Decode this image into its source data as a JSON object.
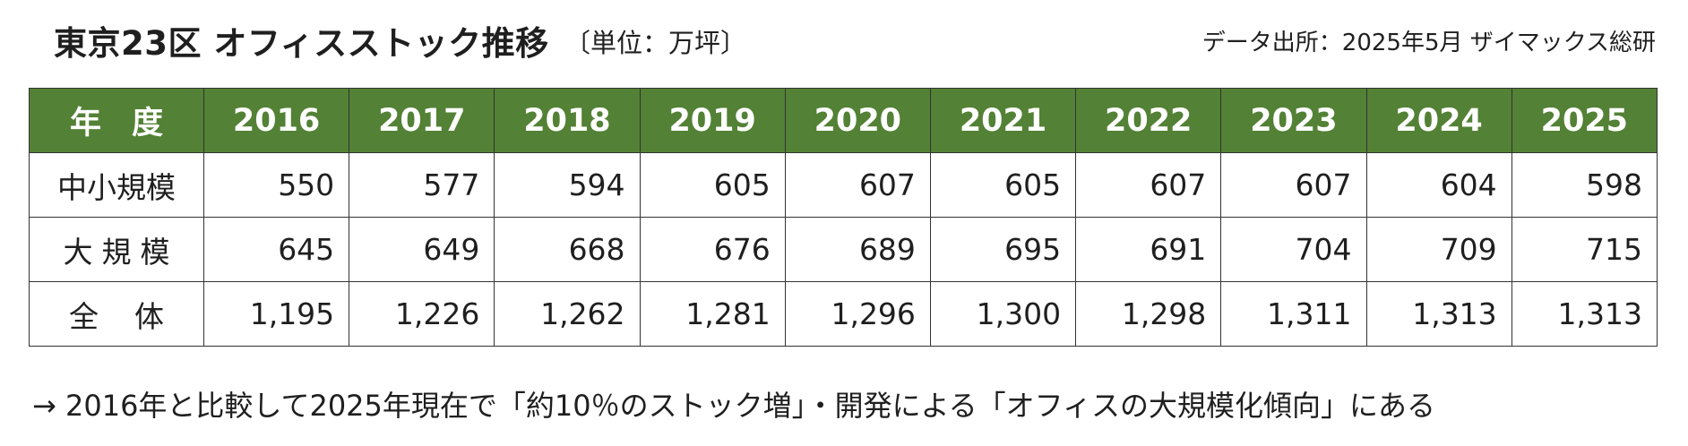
{
  "header": {
    "title": "東京23区 オフィスストック推移",
    "unit": "〔単位：万坪〕",
    "source": "データ出所：2025年5月 ザイマックス総研"
  },
  "table": {
    "corner_label": "年度",
    "years": [
      "2016",
      "2017",
      "2018",
      "2019",
      "2020",
      "2021",
      "2022",
      "2023",
      "2024",
      "2025"
    ],
    "rows": [
      {
        "label": "中小規模",
        "values": [
          "550",
          "577",
          "594",
          "605",
          "607",
          "605",
          "607",
          "607",
          "604",
          "598"
        ]
      },
      {
        "label": "大規模",
        "values": [
          "645",
          "649",
          "668",
          "676",
          "689",
          "695",
          "691",
          "704",
          "709",
          "715"
        ]
      },
      {
        "label": "全体",
        "values": [
          "1,195",
          "1,226",
          "1,262",
          "1,281",
          "1,296",
          "1,300",
          "1,298",
          "1,311",
          "1,313",
          "1,313"
        ]
      }
    ],
    "header_color": "#538135"
  },
  "note": "→ 2016年と比較して2025年現在で「約10％のストック増」・開発による「オフィスの大規模化傾向」にある"
}
